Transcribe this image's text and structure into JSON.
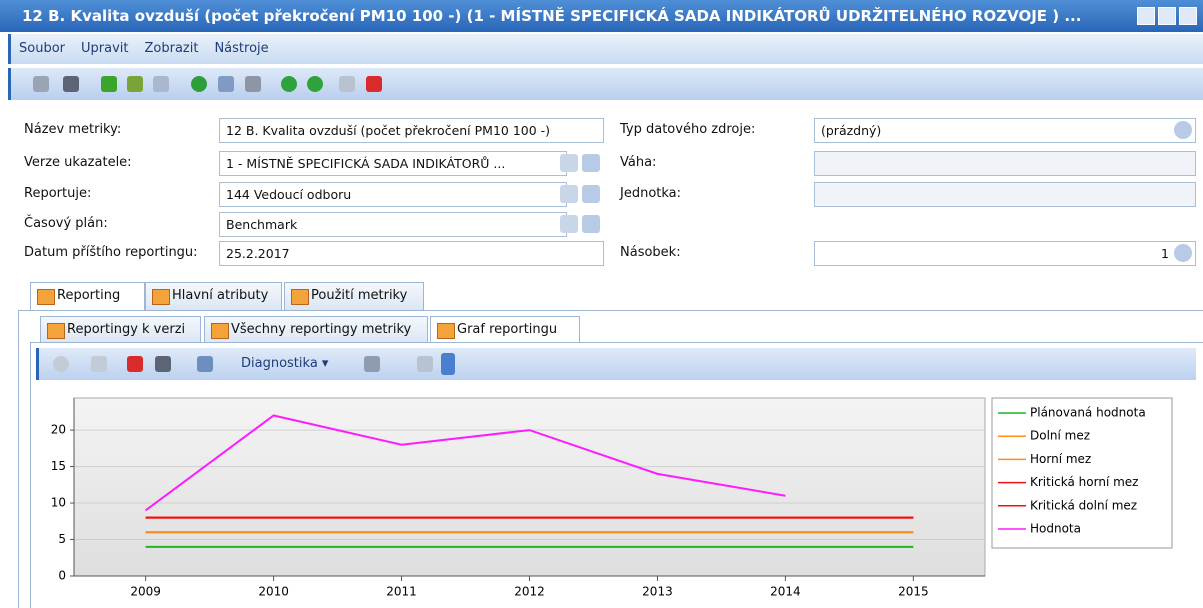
{
  "window": {
    "title": "12 B. Kvalita ovzduší (počet překročení PM10 100 -) (1 - MÍSTNĚ SPECIFICKÁ SADA INDIKÁTORŮ UDRŽITELNÉHO ROZVOJE ) ..."
  },
  "menu": [
    "Soubor",
    "Upravit",
    "Zobrazit",
    "Nástroje"
  ],
  "form": {
    "left": [
      {
        "label": "Název metriky:",
        "value": "12 B. Kvalita ovzduší (počet překročení PM10 100 -)"
      },
      {
        "label": "Verze ukazatele:",
        "value": "1 - MÍSTNĚ SPECIFICKÁ SADA INDIKÁTORŮ ..."
      },
      {
        "label": "Reportuje:",
        "value": "144 Vedoucí odboru"
      },
      {
        "label": "Časový plán:",
        "value": "Benchmark"
      },
      {
        "label": "Datum příštího reportingu:",
        "value": "25.2.2017"
      }
    ],
    "right": [
      {
        "label": "Typ datového zdroje:",
        "value": "(prázdný)"
      },
      {
        "label": "Váha:"
      },
      {
        "label": "Jednotka:"
      },
      {
        "label": "Násobek:",
        "value": 1
      }
    ]
  },
  "tabs": [
    "Reporting",
    "Hlavní atributy",
    "Použití metriky"
  ],
  "subtabs": [
    "Reportingy k verzi",
    "Všechny reportingy metriky",
    "Graf reportingu"
  ],
  "chart_toolbar": {
    "menu": "Diagnostika"
  },
  "chart_data": {
    "type": "line",
    "x": [
      2009,
      2010,
      2011,
      2012,
      2013,
      2014,
      2015
    ],
    "xlim": [
      2008.44,
      2015.56
    ],
    "xticks": [
      2009,
      2010,
      2011,
      2012,
      2013,
      2014,
      2015
    ],
    "ylim": [
      0,
      24.4
    ],
    "yticks": [
      0,
      5,
      10,
      15,
      20
    ],
    "grid": true,
    "legend": "right",
    "series": [
      {
        "name": "Plánovaná hodnota",
        "color": "#22b422",
        "values": [
          4,
          4,
          4,
          4,
          4,
          4,
          4
        ]
      },
      {
        "name": "Dolní mez",
        "color": "#ff8c1a",
        "values": [
          6,
          6,
          6,
          6,
          6,
          6,
          6
        ]
      },
      {
        "name": "Horní mez",
        "color": "#ff8c1a",
        "values": [
          6,
          6,
          6,
          6,
          6,
          6,
          6
        ]
      },
      {
        "name": "Kritická horní mez",
        "color": "#ee1111",
        "values": [
          8,
          8,
          8,
          8,
          8,
          8,
          8
        ]
      },
      {
        "name": "Kritická dolní mez",
        "color": "#ee1111",
        "values": [
          8,
          8,
          8,
          8,
          8,
          8,
          8
        ]
      },
      {
        "name": "Hodnota",
        "color": "#ff1aff",
        "values": [
          9,
          22,
          18,
          20,
          14,
          11,
          null
        ]
      }
    ]
  }
}
